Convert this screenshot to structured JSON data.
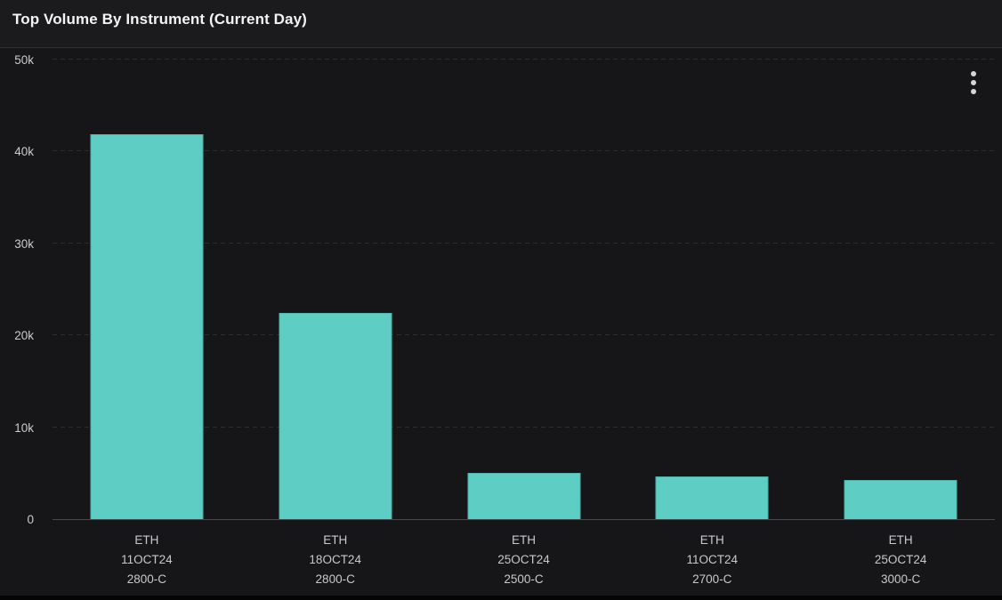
{
  "panel": {
    "title": "Top Volume By Instrument (Current Day)"
  },
  "icons": {
    "kebab_menu": "kebab-vertical-dots-icon"
  },
  "colors": {
    "bar_fill": "#5ecdc3",
    "bar_border": "#49b5ab",
    "chart_background": "#161619",
    "header_background": "#1b1b1e",
    "gridline": "#2c2c30",
    "axis_line": "#45484c",
    "title_text": "#f4f4f5",
    "tick_text": "#c9cacc",
    "bottom_strip": "#050505"
  },
  "chart_data": {
    "type": "bar",
    "title": "Top Volume By Instrument (Current Day)",
    "categories": [
      "ETH\n11OCT24\n2800-C",
      "ETH\n18OCT24\n2800-C",
      "ETH\n25OCT24\n2500-C",
      "ETH\n11OCT24\n2700-C",
      "ETH\n25OCT24\n3000-C"
    ],
    "values": [
      41900,
      22400,
      5000,
      4650,
      4250
    ],
    "xlabel": "",
    "ylabel": "",
    "ylim": [
      0,
      50000
    ],
    "yticks": [
      {
        "value": 0,
        "label": "0"
      },
      {
        "value": 10000,
        "label": "10k"
      },
      {
        "value": 20000,
        "label": "20k"
      },
      {
        "value": 30000,
        "label": "30k"
      },
      {
        "value": 40000,
        "label": "40k"
      },
      {
        "value": 50000,
        "label": "50k"
      }
    ],
    "grid": "horizontal-dashed",
    "legend": null,
    "bar_color": "#5ecdc3"
  }
}
